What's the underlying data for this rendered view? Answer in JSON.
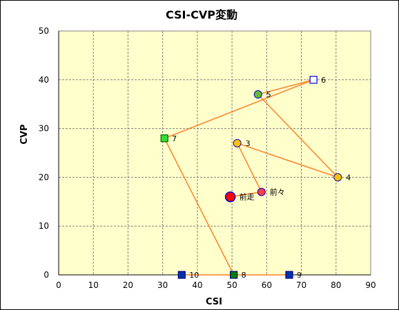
{
  "chart_data": {
    "type": "scatter",
    "title": "CSI-CVP変動",
    "xlabel": "CSI",
    "ylabel": "CVP",
    "xlim": [
      0,
      90
    ],
    "ylim": [
      0,
      50
    ],
    "xticks": [
      0,
      10,
      20,
      30,
      40,
      50,
      60,
      70,
      80,
      90
    ],
    "yticks": [
      0,
      10,
      20,
      30,
      40,
      50
    ],
    "grid": true,
    "colors": {
      "plot_bg": "#ffffcc",
      "grid": "#7f7f7f",
      "line": "#ff7f27",
      "axis": "#000000"
    },
    "path_order": [
      "前走",
      "前々",
      "3",
      "4",
      "5",
      "6",
      "7",
      "8",
      "9",
      "10"
    ],
    "points": [
      {
        "label": "前走",
        "x": 49.5,
        "y": 16,
        "marker": "circle-large",
        "fill": "#ff0000",
        "stroke": "#0000cc"
      },
      {
        "label": "前々",
        "x": 58.5,
        "y": 17,
        "marker": "circle",
        "fill": "#ff4040",
        "stroke": "#0000cc"
      },
      {
        "label": "3",
        "x": 51.5,
        "y": 27,
        "marker": "circle",
        "fill": "#ffc000",
        "stroke": "#0000cc"
      },
      {
        "label": "4",
        "x": 80.5,
        "y": 20,
        "marker": "circle",
        "fill": "#ffc000",
        "stroke": "#0000cc"
      },
      {
        "label": "5",
        "x": 57.5,
        "y": 37,
        "marker": "circle",
        "fill": "#66bb33",
        "stroke": "#0000cc"
      },
      {
        "label": "6",
        "x": 73.5,
        "y": 40,
        "marker": "square",
        "fill": "#ffffff",
        "stroke": "#0000cc"
      },
      {
        "label": "7",
        "x": 30.5,
        "y": 28,
        "marker": "square",
        "fill": "#33dd33",
        "stroke": "#006600"
      },
      {
        "label": "8",
        "x": 50.5,
        "y": 0,
        "marker": "square",
        "fill": "#008000",
        "stroke": "#000080"
      },
      {
        "label": "9",
        "x": 66.5,
        "y": 0,
        "marker": "square",
        "fill": "#0033aa",
        "stroke": "#000080"
      },
      {
        "label": "10",
        "x": 35.5,
        "y": 0,
        "marker": "square",
        "fill": "#0033aa",
        "stroke": "#000080"
      }
    ]
  }
}
